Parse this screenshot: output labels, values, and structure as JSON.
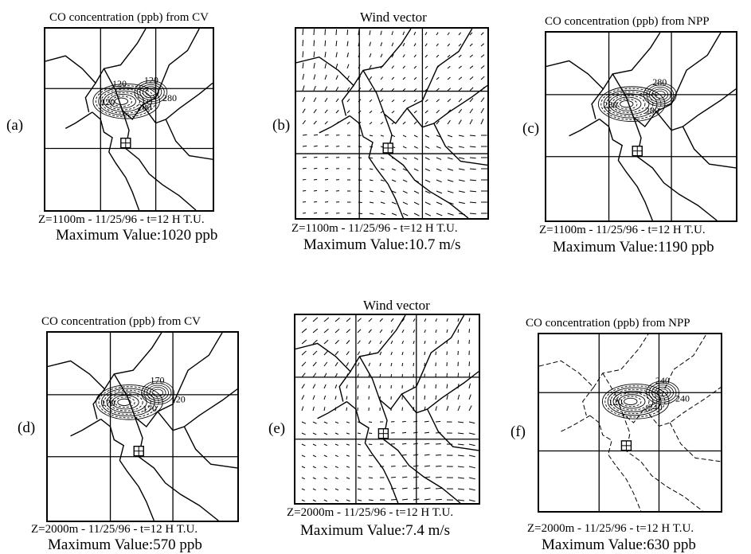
{
  "panels": [
    {
      "id": "a",
      "label": "(a)",
      "title": "CO concentration (ppb) from CV",
      "caption_line1": "Z=1100m - 11/25/96 - t=12 H T.U.",
      "caption_line2": "Maximum Value:1020 ppb",
      "kind": "co",
      "contour_labels": [
        "120",
        "120",
        "200",
        "280",
        "120"
      ]
    },
    {
      "id": "b",
      "label": "(b)",
      "title": "Wind vector",
      "caption_line1": "Z=1100m - 11/25/96 - t=12 H T.U.",
      "caption_line2": "Maximum Value:10.7 m/s",
      "kind": "wind",
      "contour_labels": []
    },
    {
      "id": "c",
      "label": "(c)",
      "title": "CO concentration (ppb) from NPP",
      "caption_line1": "Z=1100m - 11/25/96 - t=12 H T.U.",
      "caption_line2": "Maximum Value:1190 ppb",
      "kind": "co",
      "contour_labels": [
        "280",
        "280",
        "280"
      ]
    },
    {
      "id": "d",
      "label": "(d)",
      "title": "CO concentration (ppb) from CV",
      "caption_line1": "Z=2000m - 11/25/96 - t=12 H T.U.",
      "caption_line2": "Maximum Value:570 ppb",
      "kind": "co",
      "contour_labels": [
        "170",
        "170",
        "170",
        "120"
      ]
    },
    {
      "id": "e",
      "label": "(e)",
      "title": "Wind vector",
      "caption_line1": "Z=2000m - 11/25/96 - t=12 H T.U.",
      "caption_line2": "Maximum Value:7.4 m/s",
      "kind": "wind",
      "contour_labels": []
    },
    {
      "id": "f",
      "label": "(f)",
      "title": "CO concentration (ppb) from NPP",
      "caption_line1": "Z=2000m - 11/25/96 - t=12 H T.U.",
      "caption_line2": "Maximum Value:630 ppb",
      "kind": "co",
      "contour_labels": [
        "120",
        "240",
        "240",
        "240"
      ]
    }
  ]
}
